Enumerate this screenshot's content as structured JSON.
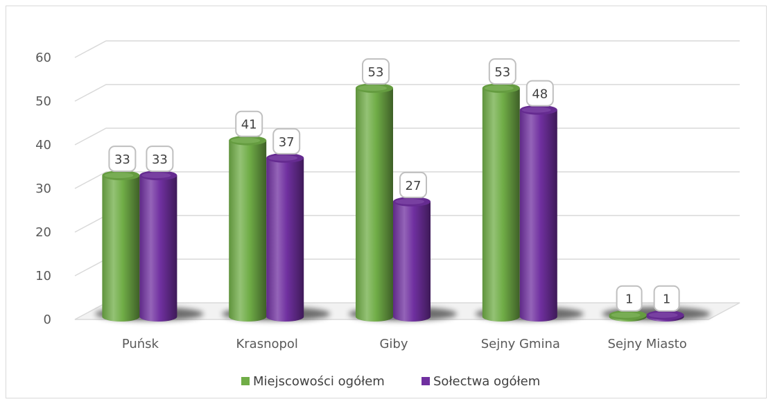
{
  "chart_data": {
    "type": "bar",
    "categories": [
      "Puńsk",
      "Krasnopol",
      "Giby",
      "Sejny Gmina",
      "Sejny Miasto"
    ],
    "series": [
      {
        "name": "Miejscowości ogółem",
        "values": [
          33,
          41,
          53,
          53,
          1
        ],
        "color": "#70ad47"
      },
      {
        "name": "Sołectwa ogółem",
        "values": [
          33,
          37,
          27,
          48,
          1
        ],
        "color": "#7030a0"
      }
    ],
    "ylim": [
      0,
      60
    ],
    "yticks": [
      0,
      10,
      20,
      30,
      40,
      50,
      60
    ],
    "grid": true,
    "legend": "bottom",
    "style": "3d-cylinder"
  }
}
